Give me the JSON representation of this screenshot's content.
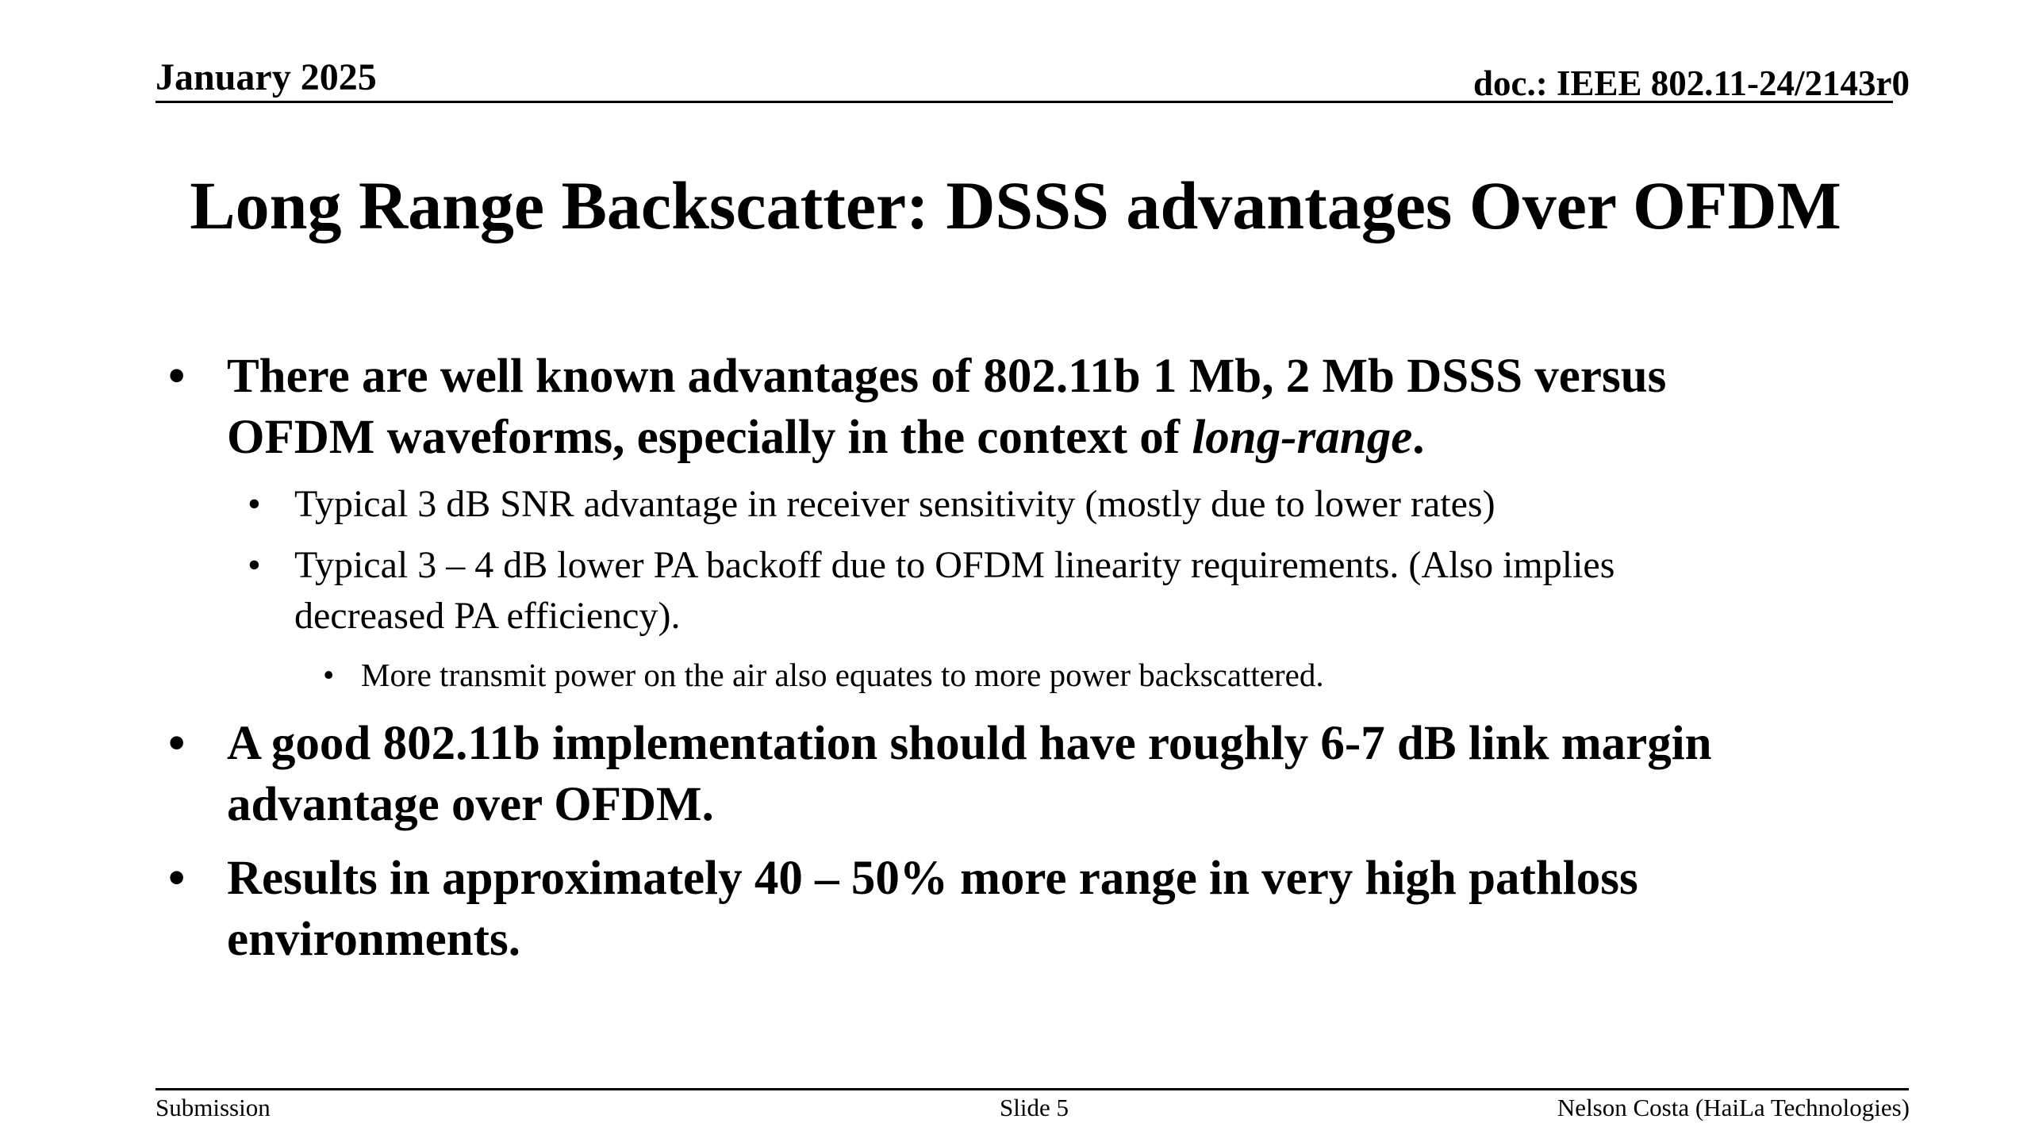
{
  "header": {
    "date": "January 2025",
    "doc_id": "doc.: IEEE 802.11-24/2143r0"
  },
  "slide": {
    "title": "Long Range Backscatter: DSSS advantages Over OFDM",
    "bullet_char": "•",
    "bullets": [
      {
        "line1": "There are well known advantages of 802.11b 1 Mb, 2 Mb DSSS versus",
        "line2_prefix": "OFDM waveforms, especially in the context of ",
        "line2_emphasis": "long-range",
        "line2_suffix": "."
      },
      {
        "line1": "Typical 3 dB SNR advantage in receiver sensitivity (mostly due to lower rates)"
      },
      {
        "line1": "Typical 3 – 4 dB lower PA backoff due to OFDM linearity requirements. (Also implies",
        "line2": "decreased PA efficiency)."
      },
      {
        "line1": "More transmit power on the air also equates to more power backscattered."
      },
      {
        "line1": "A good 802.11b implementation should have roughly 6-7 dB link margin",
        "line2": "advantage over OFDM."
      },
      {
        "line1": "Results in approximately 40 – 50% more range in very high pathloss",
        "line2": "environments."
      }
    ]
  },
  "footer": {
    "left": "Submission",
    "center": "Slide 5",
    "right": "Nelson Costa (HaiLa Technologies)"
  }
}
